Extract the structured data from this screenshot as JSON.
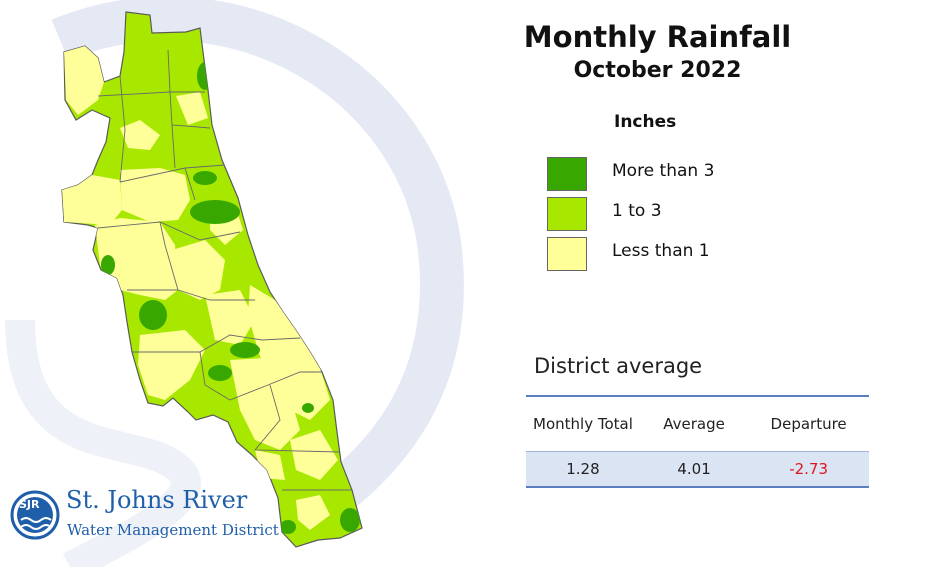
{
  "title": "Monthly Rainfall",
  "subtitle": "October 2022",
  "legend": {
    "heading": "Inches",
    "items": [
      {
        "label": "More than 3",
        "color": "#38a800"
      },
      {
        "label": "1 to 3",
        "color": "#a8e800"
      },
      {
        "label": "Less than 1",
        "color": "#ffff99"
      }
    ]
  },
  "district_average": {
    "heading": "District average",
    "columns": [
      "Monthly Total",
      "Average",
      "Departure"
    ],
    "values": [
      "1.28",
      "4.01",
      "-2.73"
    ]
  },
  "logo": {
    "name": "St. Johns River",
    "subtitle": "Water Management District",
    "mark_text": "SJR"
  },
  "colors": {
    "accent_blue": "#1f5faa",
    "negative_red": "#e0141e",
    "background_swirl": "#e4e9f4"
  }
}
